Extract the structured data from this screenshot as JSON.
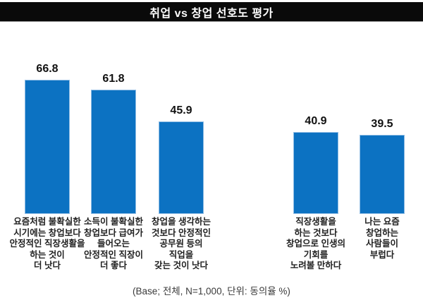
{
  "header": {
    "title": "취업 vs 창업 선호도 평가"
  },
  "footer": {
    "note": "(Base; 전체, N=1,000, 단위: 동의율 %)"
  },
  "colors": {
    "bar": "#0c72c2",
    "bar_border": "#8fbce4",
    "banner_bg": "#0a0a0a",
    "banner_text": "#ffffff"
  },
  "chart_data": {
    "type": "bar",
    "title": "취업 vs 창업 선호도 평가",
    "categories": [
      "요즘처럼 불확실한\n시기에는 창업보다\n안정적인 직장생활을\n하는 것이\n더 낫다",
      "소득이 불확실한\n창업보다 급여가\n들어오는\n안정적인 직장이\n더 좋다",
      "창업을 생각하는\n것보다 안정적인\n공무원 등의\n직업을\n갖는 것이 낫다",
      "직장생활을\n하는 것보다\n창업으로 인생의\n기회를\n노려볼 만하다",
      "나는 요즘\n창업하는\n사람들이\n부럽다"
    ],
    "values": [
      66.8,
      61.8,
      45.9,
      40.9,
      39.5
    ],
    "xlabel": "",
    "ylabel": "동의율 %",
    "ylim": [
      0,
      70
    ],
    "grid": false,
    "legend": false,
    "data_labels": true
  }
}
